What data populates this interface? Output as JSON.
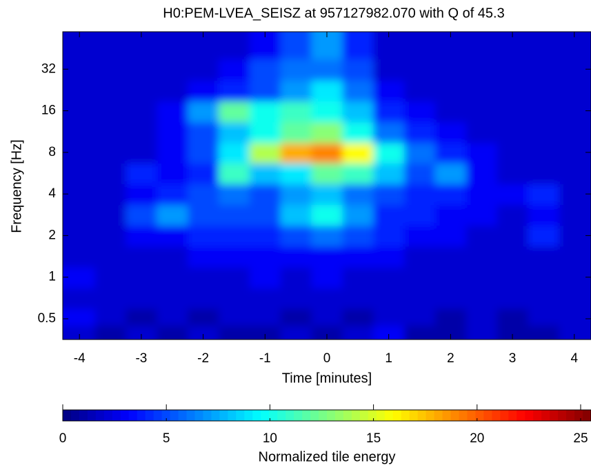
{
  "chart_data": {
    "type": "heatmap",
    "title": "H0:PEM-LVEA_SEISZ at 957127982.070 with Q of 45.3",
    "x_label": "Time [minutes]",
    "y_label": "Frequency [Hz]",
    "x": [
      -4,
      -3.5,
      -3,
      -2.5,
      -2,
      -1.5,
      -1,
      -0.5,
      0,
      0.5,
      1,
      1.5,
      2,
      2.5,
      3,
      3.5,
      4
    ],
    "y": [
      0.4,
      0.5,
      0.7,
      1,
      1.4,
      2,
      2.8,
      4,
      5.6,
      8,
      11,
      16,
      22,
      32,
      45
    ],
    "z": [
      [
        2,
        1,
        2,
        1,
        2,
        1,
        1,
        2,
        1,
        2,
        3,
        1,
        1,
        2,
        1,
        1,
        2
      ],
      [
        3,
        2,
        1,
        2,
        1,
        2,
        2,
        1,
        2,
        1,
        2,
        2,
        1,
        2,
        1,
        2,
        2
      ],
      [
        2,
        2,
        2,
        2,
        2,
        2,
        2,
        2,
        2,
        2,
        2,
        2,
        2,
        2,
        2,
        2,
        2
      ],
      [
        3,
        2,
        2,
        2,
        2,
        2,
        3,
        2,
        3,
        2,
        2,
        2,
        2,
        2,
        2,
        2,
        2
      ],
      [
        2,
        2,
        2,
        2,
        3,
        3,
        3,
        3,
        3,
        3,
        3,
        2,
        2,
        2,
        2,
        2,
        2
      ],
      [
        2,
        2,
        3,
        3,
        4,
        4,
        4,
        5,
        6,
        5,
        4,
        3,
        3,
        2,
        2,
        4,
        2
      ],
      [
        2,
        2,
        5,
        7,
        5,
        5,
        5,
        8,
        10,
        7,
        4,
        4,
        3,
        3,
        2,
        3,
        2
      ],
      [
        2,
        2,
        3,
        4,
        5,
        6,
        5,
        7,
        8,
        6,
        5,
        4,
        4,
        3,
        3,
        4,
        2
      ],
      [
        2,
        2,
        4,
        3,
        4,
        11,
        8,
        9,
        12,
        11,
        8,
        5,
        7,
        3,
        2,
        2,
        2
      ],
      [
        2,
        2,
        2,
        3,
        5,
        9,
        14,
        18,
        19,
        16,
        10,
        6,
        4,
        3,
        2,
        2,
        2
      ],
      [
        2,
        2,
        2,
        3,
        5,
        8,
        10,
        12,
        13,
        10,
        6,
        4,
        3,
        2,
        2,
        2,
        2
      ],
      [
        2,
        2,
        2,
        3,
        7,
        12,
        10,
        11,
        10,
        8,
        4,
        3,
        2,
        2,
        2,
        2,
        2
      ],
      [
        2,
        2,
        2,
        2,
        3,
        4,
        5,
        7,
        9,
        6,
        3,
        2,
        2,
        2,
        2,
        2,
        2
      ],
      [
        2,
        2,
        2,
        2,
        2,
        3,
        5,
        6,
        6,
        5,
        2,
        2,
        2,
        2,
        2,
        2,
        2
      ],
      [
        2,
        2,
        2,
        2,
        2,
        2,
        3,
        5,
        7,
        4,
        2,
        2,
        2,
        2,
        2,
        2,
        2
      ]
    ],
    "xlim": [
      -4.27,
      4.27
    ],
    "xticks": [
      -4,
      -3,
      -2,
      -1,
      0,
      1,
      2,
      3,
      4
    ],
    "ylim": [
      0.354,
      59.7
    ],
    "yscale": "log",
    "yticks": [
      0.5,
      1,
      2,
      4,
      8,
      16,
      32
    ],
    "colormap": "jet",
    "clim": [
      0,
      25.5
    ],
    "cticks": [
      0,
      5,
      10,
      15,
      20,
      25
    ],
    "colorbar_label": "Normalized tile energy"
  }
}
